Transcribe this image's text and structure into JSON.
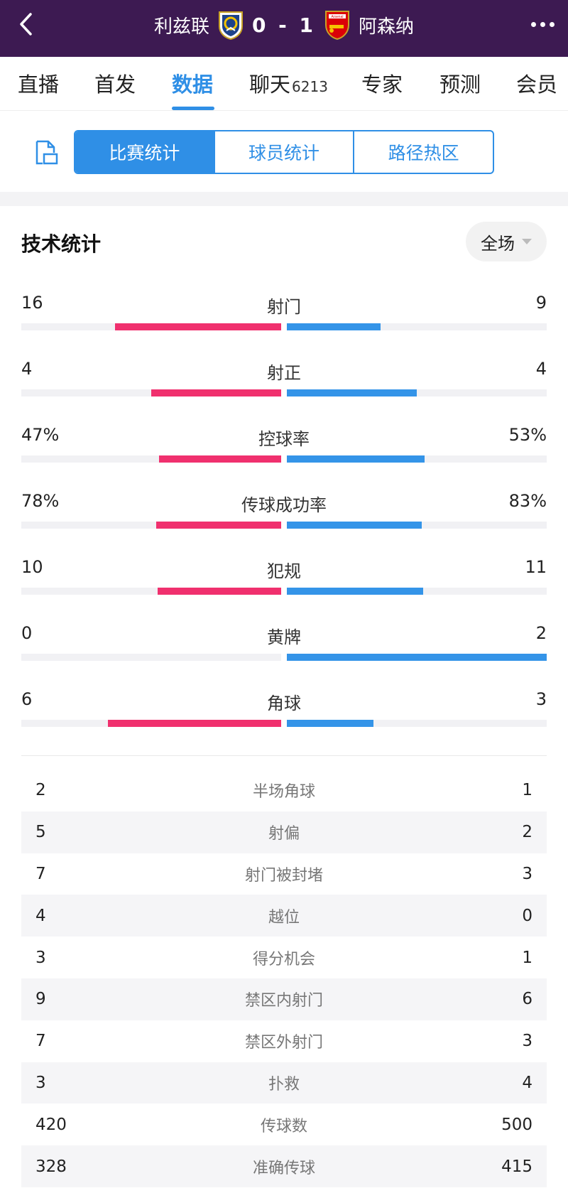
{
  "header": {
    "home_team": "利兹联",
    "away_team": "阿森纳",
    "score": "0 - 1",
    "home_logo_icon": "leeds-crest-icon",
    "away_logo_icon": "arsenal-crest-icon",
    "away_logo_text": "Arsenal",
    "bg_color": "#3d1a52"
  },
  "tabs": [
    {
      "label": "直播",
      "badge": ""
    },
    {
      "label": "首发",
      "badge": ""
    },
    {
      "label": "数据",
      "badge": ""
    },
    {
      "label": "聊天",
      "badge": "6213"
    },
    {
      "label": "专家",
      "badge": ""
    },
    {
      "label": "预测",
      "badge": ""
    },
    {
      "label": "会员",
      "badge": ""
    }
  ],
  "active_tab": "数据",
  "subtabs": [
    "比赛统计",
    "球员统计",
    "路径热区"
  ],
  "active_subtab": "比赛统计",
  "section": {
    "title": "技术统计",
    "period": "全场"
  },
  "colors": {
    "accent": "#2f8fe6",
    "home_bar": "#f0306e",
    "away_bar": "#3494e8"
  },
  "bar_stats": [
    {
      "label": "射门",
      "home": "16",
      "away": "9",
      "home_frac": 0.64,
      "away_frac": 0.36
    },
    {
      "label": "射正",
      "home": "4",
      "away": "4",
      "home_frac": 0.5,
      "away_frac": 0.5
    },
    {
      "label": "控球率",
      "home": "47%",
      "away": "53%",
      "home_frac": 0.47,
      "away_frac": 0.53
    },
    {
      "label": "传球成功率",
      "home": "78%",
      "away": "83%",
      "home_frac": 0.48,
      "away_frac": 0.52
    },
    {
      "label": "犯规",
      "home": "10",
      "away": "11",
      "home_frac": 0.476,
      "away_frac": 0.524
    },
    {
      "label": "黄牌",
      "home": "0",
      "away": "2",
      "home_frac": 0,
      "away_frac": 1.0
    },
    {
      "label": "角球",
      "home": "6",
      "away": "3",
      "home_frac": 0.667,
      "away_frac": 0.333
    }
  ],
  "table_stats": [
    {
      "label": "半场角球",
      "home": "2",
      "away": "1"
    },
    {
      "label": "射偏",
      "home": "5",
      "away": "2"
    },
    {
      "label": "射门被封堵",
      "home": "7",
      "away": "3"
    },
    {
      "label": "越位",
      "home": "4",
      "away": "0"
    },
    {
      "label": "得分机会",
      "home": "3",
      "away": "1"
    },
    {
      "label": "禁区内射门",
      "home": "9",
      "away": "6"
    },
    {
      "label": "禁区外射门",
      "home": "7",
      "away": "3"
    },
    {
      "label": "扑救",
      "home": "3",
      "away": "4"
    },
    {
      "label": "传球数",
      "home": "420",
      "away": "500"
    },
    {
      "label": "准确传球",
      "home": "328",
      "away": "415"
    }
  ]
}
